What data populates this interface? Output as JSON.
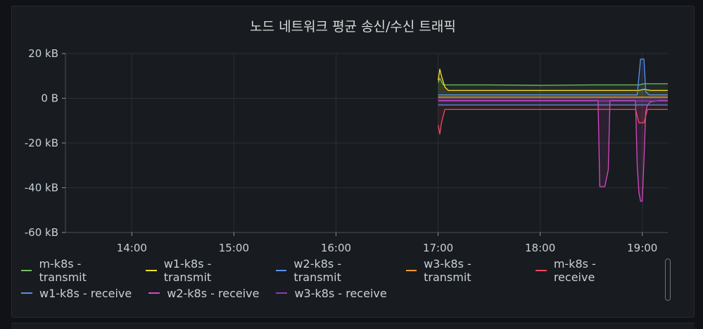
{
  "panel": {
    "title": "노드 네트워크 평균 송신/수신 트래픽"
  },
  "chart_data": {
    "type": "line",
    "title": "노드 네트워크 평균 송신/수신 트래픽",
    "xlabel": "",
    "ylabel": "",
    "x_range": [
      "13:21",
      "19:15"
    ],
    "ylim": [
      -60,
      20
    ],
    "x_ticks": [
      "14:00",
      "15:00",
      "16:00",
      "17:00",
      "18:00",
      "19:00"
    ],
    "y_ticks": [
      {
        "value": 20,
        "label": "20 kB"
      },
      {
        "value": 0,
        "label": "0 B"
      },
      {
        "value": -20,
        "label": "-20 kB"
      },
      {
        "value": -40,
        "label": "-40 kB"
      },
      {
        "value": -60,
        "label": "-60 kB"
      }
    ],
    "y_unit": "kB",
    "grid": true,
    "legend_position": "bottom",
    "series": [
      {
        "name": "m-k8s - transmit",
        "color": "#73bf69",
        "x": [
          "17:00",
          "17:01",
          "17:03",
          "17:05",
          "17:30",
          "18:00",
          "18:30",
          "18:58",
          "19:01",
          "19:05",
          "19:10",
          "19:15"
        ],
        "y": [
          7,
          9,
          6,
          6,
          6,
          5.8,
          6,
          6,
          6.5,
          6.5,
          6.5,
          6.5
        ]
      },
      {
        "name": "w1-k8s - transmit",
        "color": "#fade2a",
        "x": [
          "17:00",
          "17:01",
          "17:02",
          "17:04",
          "17:06",
          "17:30",
          "18:00",
          "18:30",
          "18:58",
          "19:01",
          "19:05",
          "19:10",
          "19:15"
        ],
        "y": [
          8,
          13,
          10,
          5,
          3.5,
          3.5,
          3.5,
          3.5,
          3.5,
          4,
          3.5,
          3.5,
          3.5
        ]
      },
      {
        "name": "w2-k8s - transmit",
        "color": "#5794f2",
        "x": [
          "17:00",
          "17:30",
          "18:00",
          "18:30",
          "18:55",
          "18:57",
          "18:59",
          "19:00",
          "19:01",
          "19:02",
          "19:04",
          "19:10",
          "19:15"
        ],
        "y": [
          1.5,
          1.5,
          1.5,
          1.5,
          1.5,
          1.5,
          17.5,
          17.5,
          17.5,
          3,
          1.5,
          1.5,
          1.5
        ]
      },
      {
        "name": "w3-k8s - transmit",
        "color": "#ff9830",
        "x": [
          "17:00",
          "17:30",
          "18:00",
          "18:30",
          "19:00",
          "19:15"
        ],
        "y": [
          0.5,
          0.5,
          0.5,
          0.5,
          0.5,
          0.5
        ]
      },
      {
        "name": "m-k8s - receive",
        "color": "#f2495c",
        "x": [
          "17:00",
          "17:01",
          "17:02",
          "17:04",
          "17:30",
          "18:00",
          "18:30",
          "18:56",
          "18:58",
          "19:01",
          "19:03",
          "19:05",
          "19:10",
          "19:15"
        ],
        "y": [
          -12,
          -16,
          -11,
          -5,
          -5,
          -5,
          -5,
          -5,
          -11,
          -11,
          -5,
          -5,
          -5,
          -5
        ]
      },
      {
        "name": "w1-k8s - receive",
        "color": "#5b8fe6",
        "x": [
          "17:00",
          "17:30",
          "18:00",
          "18:30",
          "19:00",
          "19:15"
        ],
        "y": [
          -3,
          -3,
          -3,
          -3,
          -3,
          -3
        ]
      },
      {
        "name": "w2-k8s - receive",
        "color": "#d44ac4",
        "x": [
          "17:00",
          "18:00",
          "18:32",
          "18:34",
          "18:35",
          "18:38",
          "18:40",
          "18:41",
          "18:43",
          "18:56",
          "18:57",
          "18:58",
          "18:59",
          "19:00",
          "19:01",
          "19:02",
          "19:03",
          "19:05",
          "19:10",
          "19:15"
        ],
        "y": [
          -1,
          -1,
          -1,
          -1,
          -39.5,
          -39.5,
          -32,
          -1,
          -1,
          -1,
          -30,
          -42,
          -46,
          -46,
          -28,
          -6,
          -3,
          -1.5,
          -1,
          -1
        ]
      },
      {
        "name": "w3-k8s - receive",
        "color": "#8f3bb8",
        "x": [
          "17:00",
          "17:30",
          "18:00",
          "18:30",
          "19:00",
          "19:15"
        ],
        "y": [
          -1.2,
          -1.2,
          -1.2,
          -1.2,
          -1.2,
          -1.2
        ]
      }
    ]
  }
}
